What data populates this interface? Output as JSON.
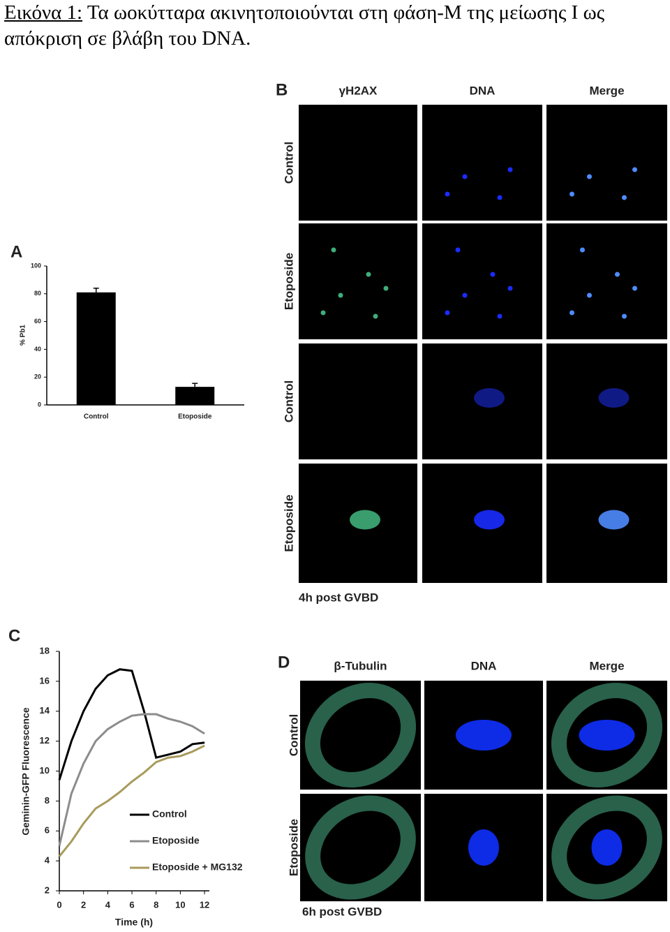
{
  "caption": {
    "label": "Εικόνα 1:",
    "text": "Τα ωοκύτταρα ακινητοποιούνται στη φάση-Μ της μείωσης Ι ως απόκριση σε βλάβη του DNA."
  },
  "chart_data": [
    {
      "type": "bar",
      "panel": "A",
      "ylabel": "% Pb1",
      "categories": [
        "Control",
        "Etoposide"
      ],
      "values": [
        81,
        13
      ],
      "errors": [
        3,
        2.5
      ],
      "color": "#000000",
      "ylim": [
        0,
        100
      ],
      "yticks": [
        0,
        20,
        40,
        60,
        80,
        100
      ]
    },
    {
      "type": "line",
      "panel": "C",
      "xlabel": "Time (h)",
      "ylabel": "Geminin-GFP Fluorescence",
      "x": [
        0,
        1,
        2,
        3,
        4,
        5,
        6,
        7,
        8,
        9,
        10,
        11,
        12
      ],
      "series": [
        {
          "name": "Control",
          "color": "#000000",
          "values": [
            9.4,
            12,
            14,
            15.5,
            16.4,
            16.8,
            16.7,
            14,
            10.9,
            11.1,
            11.3,
            11.8,
            11.9
          ]
        },
        {
          "name": "Etoposide",
          "color": "#8c8c8c",
          "values": [
            5,
            8.5,
            10.5,
            12,
            12.8,
            13.3,
            13.7,
            13.8,
            13.8,
            13.5,
            13.3,
            13,
            12.5
          ]
        },
        {
          "name": "Etoposide + MG132",
          "color": "#a89a5a",
          "values": [
            4.3,
            5.3,
            6.5,
            7.5,
            8,
            8.6,
            9.3,
            9.9,
            10.6,
            10.9,
            11,
            11.3,
            11.7
          ]
        }
      ],
      "xlim": [
        0,
        12.4
      ],
      "xticks": [
        0,
        2,
        4,
        6,
        8,
        10,
        12
      ],
      "ylim": [
        2,
        18
      ],
      "yticks": [
        2,
        4,
        6,
        8,
        10,
        12,
        14,
        16,
        18
      ]
    }
  ],
  "image_panels": [
    {
      "panel": "B",
      "columns": [
        "γH2AX",
        "DNA",
        "Merge"
      ],
      "rows": [
        "Control",
        "Etoposide",
        "Control",
        "Etoposide"
      ],
      "footnote": "4h post GVBD"
    },
    {
      "panel": "D",
      "columns": [
        "β-Tubulin",
        "DNA",
        "Merge"
      ],
      "rows": [
        "Control",
        "Etoposide"
      ],
      "footnote": "6h post GVBD"
    }
  ]
}
